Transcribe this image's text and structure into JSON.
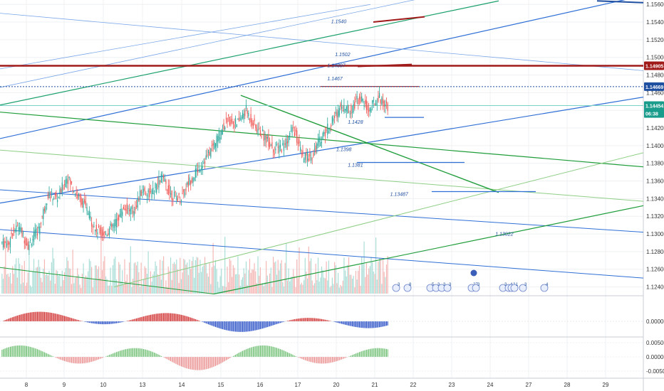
{
  "colors": {
    "up_candle": "#26a69a",
    "down_candle": "#ef5350",
    "blue_line": "#2f6fd6",
    "light_blue_line": "#7aa6e8",
    "green_line": "#1f9d3a",
    "dark_red_line": "#a01a1a",
    "price_tag_blue": "#1e4fa0",
    "price_tag_red": "#a01a1a",
    "price_tag_teal": "#1a9c8c"
  },
  "chart_data": {
    "type": "candlestick",
    "x_ticks": [
      "8",
      "9",
      "10",
      "13",
      "14",
      "15",
      "16",
      "17",
      "20",
      "21",
      "22",
      "23",
      "24",
      "27",
      "28",
      "29"
    ],
    "y_ticks": [
      "1.15600",
      "1.15400",
      "1.15200",
      "1.15000",
      "1.14800",
      "1.14600",
      "1.14400",
      "1.14200",
      "1.14000",
      "1.13800",
      "1.13600",
      "1.13400",
      "1.13200",
      "1.13000",
      "1.12800",
      "1.12600",
      "1.12400"
    ],
    "ylim": [
      1.123,
      1.1565
    ],
    "price_tags": [
      {
        "label": "1.14905",
        "value": 1.14905,
        "color": "#a01a1a"
      },
      {
        "label": "1.14669",
        "value": 1.14669,
        "color": "#1e4fa0"
      },
      {
        "label": "1.14454",
        "value": 1.14454,
        "color": "#1a9c8c"
      },
      {
        "label": "06:38",
        "value": 1.14365,
        "color": "#1a9c8c"
      }
    ],
    "annotations": [
      {
        "text": "1.1540",
        "x_day": 19.6,
        "y": 1.1539
      },
      {
        "text": "1.1502",
        "x_day": 19.9,
        "y": 1.15015
      },
      {
        "text": "1.14897",
        "x_day": 19.3,
        "y": 1.1489
      },
      {
        "text": "1.1467",
        "x_day": 19.3,
        "y": 1.1474
      },
      {
        "text": "1.1428",
        "x_day": 20.3,
        "y": 1.1425
      },
      {
        "text": "1.1398",
        "x_day": 20.0,
        "y": 1.1394
      },
      {
        "text": "1.1381",
        "x_day": 20.3,
        "y": 1.1376
      },
      {
        "text": "1.13487",
        "x_day": 21.4,
        "y": 1.1343
      },
      {
        "text": "1.13022",
        "x_day": 24.4,
        "y": 1.1298
      }
    ],
    "candles_close_path": [
      [
        1.129,
        1.129
      ],
      [
        1.13,
        1.131
      ],
      [
        1.1305,
        1.1285
      ],
      [
        1.129,
        1.1305
      ],
      [
        1.1305,
        1.1345
      ],
      [
        1.1345,
        1.134
      ],
      [
        1.134,
        1.1365
      ],
      [
        1.1365,
        1.1345
      ],
      [
        1.1345,
        1.133
      ],
      [
        1.133,
        1.1305
      ],
      [
        1.1305,
        1.13
      ],
      [
        1.13,
        1.131
      ],
      [
        1.131,
        1.133
      ],
      [
        1.133,
        1.1325
      ],
      [
        1.1325,
        1.135
      ],
      [
        1.135,
        1.1345
      ],
      [
        1.1345,
        1.1365
      ],
      [
        1.1365,
        1.1345
      ],
      [
        1.1345,
        1.134
      ],
      [
        1.134,
        1.136
      ],
      [
        1.136,
        1.1375
      ],
      [
        1.1375,
        1.139
      ],
      [
        1.139,
        1.141
      ],
      [
        1.141,
        1.143
      ],
      [
        1.143,
        1.1425
      ],
      [
        1.1425,
        1.144
      ],
      [
        1.144,
        1.142
      ],
      [
        1.142,
        1.141
      ],
      [
        1.141,
        1.1395
      ],
      [
        1.1395,
        1.14
      ],
      [
        1.14,
        1.142
      ],
      [
        1.142,
        1.1385
      ],
      [
        1.1385,
        1.139
      ],
      [
        1.139,
        1.141
      ],
      [
        1.141,
        1.1425
      ],
      [
        1.1425,
        1.1445
      ],
      [
        1.1445,
        1.144
      ],
      [
        1.144,
        1.1455
      ],
      [
        1.1455,
        1.144
      ],
      [
        1.144,
        1.1455
      ],
      [
        1.1455,
        1.1445
      ]
    ]
  },
  "markers": {
    "flag_labels": [
      "3",
      "8",
      "5",
      "3",
      "3",
      "3",
      "27",
      "3",
      "3",
      "4",
      "2",
      "1",
      "3",
      "4"
    ]
  },
  "indicators": {
    "macd_ticks": [
      "0.00000"
    ],
    "osc_ticks": [
      "0.00500",
      "0.00000",
      "-0.00500"
    ]
  }
}
